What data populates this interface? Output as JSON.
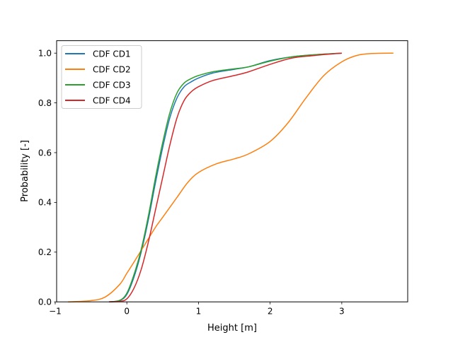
{
  "chart_data": {
    "type": "line",
    "title": "",
    "xlabel": "Height [m]",
    "ylabel": "Probability [-]",
    "xlim": [
      -0.98,
      3.92
    ],
    "ylim": [
      0.0,
      1.05
    ],
    "xticks": [
      -1,
      0,
      1,
      2,
      3
    ],
    "xtick_labels": [
      "−1",
      "0",
      "1",
      "2",
      "3"
    ],
    "yticks": [
      0.0,
      0.2,
      0.4,
      0.6,
      0.8,
      1.0
    ],
    "ytick_labels": [
      "0.0",
      "0.2",
      "0.4",
      "0.6",
      "0.8",
      "1.0"
    ],
    "grid": false,
    "legend_position": "upper-left",
    "series": [
      {
        "name": "CDF CD1",
        "color": "#1f77b4",
        "x": [
          -0.25,
          -0.1,
          0.0,
          0.1,
          0.2,
          0.3,
          0.4,
          0.5,
          0.6,
          0.7,
          0.8,
          0.9,
          1.0,
          1.2,
          1.5,
          1.7,
          2.0,
          2.3,
          2.6,
          3.0
        ],
        "y": [
          0.0,
          0.005,
          0.03,
          0.1,
          0.2,
          0.33,
          0.48,
          0.62,
          0.74,
          0.82,
          0.865,
          0.885,
          0.9,
          0.92,
          0.935,
          0.945,
          0.97,
          0.985,
          0.993,
          1.0
        ]
      },
      {
        "name": "CDF CD2",
        "color": "#ff7f0e",
        "x": [
          -0.82,
          -0.5,
          -0.3,
          -0.1,
          0.0,
          0.1,
          0.25,
          0.4,
          0.5,
          0.7,
          0.85,
          1.0,
          1.25,
          1.5,
          1.7,
          2.0,
          2.25,
          2.5,
          2.75,
          3.0,
          3.2,
          3.4,
          3.72
        ],
        "y": [
          0.0,
          0.005,
          0.02,
          0.07,
          0.115,
          0.16,
          0.23,
          0.3,
          0.34,
          0.42,
          0.48,
          0.52,
          0.555,
          0.575,
          0.595,
          0.645,
          0.72,
          0.82,
          0.91,
          0.965,
          0.99,
          0.998,
          1.0
        ]
      },
      {
        "name": "CDF CD3",
        "color": "#2ca02c",
        "x": [
          -0.25,
          -0.1,
          0.0,
          0.1,
          0.2,
          0.3,
          0.4,
          0.5,
          0.6,
          0.7,
          0.8,
          0.9,
          1.0,
          1.2,
          1.5,
          1.7,
          2.0,
          2.3,
          2.6,
          3.0
        ],
        "y": [
          0.0,
          0.006,
          0.035,
          0.11,
          0.21,
          0.345,
          0.5,
          0.64,
          0.76,
          0.84,
          0.88,
          0.898,
          0.91,
          0.925,
          0.937,
          0.945,
          0.968,
          0.985,
          0.993,
          1.0
        ]
      },
      {
        "name": "CDF CD4",
        "color": "#d62728",
        "x": [
          -0.25,
          -0.1,
          0.0,
          0.1,
          0.2,
          0.3,
          0.4,
          0.5,
          0.6,
          0.7,
          0.8,
          0.9,
          1.0,
          1.2,
          1.5,
          1.7,
          2.0,
          2.3,
          2.6,
          3.0
        ],
        "y": [
          0.0,
          0.002,
          0.012,
          0.055,
          0.13,
          0.24,
          0.37,
          0.5,
          0.63,
          0.74,
          0.81,
          0.845,
          0.865,
          0.89,
          0.91,
          0.925,
          0.955,
          0.98,
          0.99,
          1.0
        ]
      }
    ]
  }
}
